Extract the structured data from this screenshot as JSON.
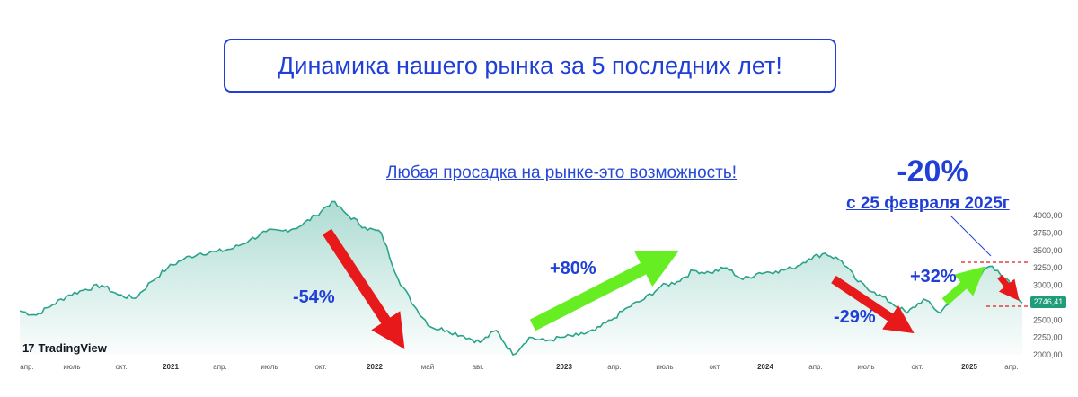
{
  "header": {
    "title": "Динамика нашего рынка за 5 последних лет!"
  },
  "subtitle": "Любая просадка на рынке-это возможность!",
  "annotation": {
    "drop": "-20%",
    "since": "с 25 февраля 2025г"
  },
  "moves": [
    {
      "label": "-54%",
      "color": "#e8191a"
    },
    {
      "label": "+80%",
      "color": "#66ee22"
    },
    {
      "label": "-29%",
      "color": "#e8191a"
    },
    {
      "label": "+32%",
      "color": "#66ee22"
    },
    {
      "label": "",
      "color": "#e8191a"
    }
  ],
  "logo": {
    "mark": "17",
    "text": "TradingView"
  },
  "last_price": "2746,41",
  "colors": {
    "line": "#2aa38a",
    "accent": "#1f3fd6",
    "badge": "#1f9c79",
    "reference_line": "#e8191a"
  },
  "chart_data": {
    "type": "area",
    "y_ticks": [
      "4000,00",
      "3750,00",
      "3500,00",
      "3250,00",
      "3000,00",
      "2750,00",
      "2500,00",
      "2250,00",
      "2000,00"
    ],
    "x_ticks": [
      "апр.",
      "июль",
      "окт.",
      "2021",
      "апр.",
      "июль",
      "окт.",
      "2022",
      "май",
      "авг.",
      "2023",
      "апр.",
      "июль",
      "окт.",
      "2024",
      "апр.",
      "июль",
      "окт.",
      "2025",
      "апр."
    ],
    "ylim": [
      2000,
      4000
    ],
    "x": [
      "2020-03",
      "2020-04",
      "2020-05",
      "2020-06",
      "2020-07",
      "2020-08",
      "2020-09",
      "2020-10",
      "2020-11",
      "2020-12",
      "2021-01",
      "2021-02",
      "2021-03",
      "2021-04",
      "2021-05",
      "2021-06",
      "2021-07",
      "2021-08",
      "2021-09",
      "2021-10",
      "2021-11",
      "2021-12",
      "2022-01",
      "2022-02",
      "2022-03",
      "2022-04",
      "2022-05",
      "2022-06",
      "2022-07",
      "2022-08",
      "2022-09",
      "2022-10",
      "2022-11",
      "2022-12",
      "2023-01",
      "2023-02",
      "2023-03",
      "2023-04",
      "2023-05",
      "2023-06",
      "2023-07",
      "2023-08",
      "2023-09",
      "2023-10",
      "2023-11",
      "2023-12",
      "2024-01",
      "2024-02",
      "2024-03",
      "2024-04",
      "2024-05",
      "2024-06",
      "2024-07",
      "2024-08",
      "2024-09",
      "2024-10",
      "2024-11",
      "2024-12",
      "2025-01",
      "2025-02",
      "2025-03",
      "2025-04"
    ],
    "values": [
      2630,
      2570,
      2720,
      2860,
      2940,
      3000,
      2860,
      2810,
      3050,
      3250,
      3380,
      3460,
      3480,
      3530,
      3650,
      3770,
      3780,
      3840,
      4000,
      4200,
      4000,
      3830,
      3750,
      3100,
      2700,
      2400,
      2350,
      2270,
      2180,
      2350,
      2000,
      2250,
      2200,
      2250,
      2280,
      2350,
      2500,
      2680,
      2800,
      2980,
      3050,
      3210,
      3180,
      3250,
      3080,
      3180,
      3200,
      3240,
      3380,
      3460,
      3350,
      3050,
      2900,
      2750,
      2600,
      2800,
      2600,
      2900,
      3050,
      3270,
      3100,
      2746.41
    ]
  }
}
